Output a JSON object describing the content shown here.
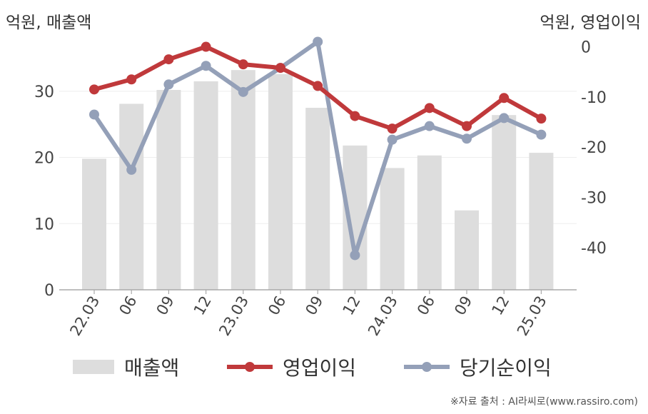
{
  "unit_left": "억원, 매출액",
  "unit_right": "억원, 영업이익",
  "footer": "※자료 출처 : AI라씨로(www.rassiro.com)",
  "chart_data": {
    "type": "bar+line",
    "categories": [
      "22.03",
      "06",
      "09",
      "12",
      "23.03",
      "06",
      "09",
      "12",
      "24.03",
      "06",
      "09",
      "12",
      "25.03"
    ],
    "series": [
      {
        "name": "매출액",
        "type": "bar",
        "axis": "left",
        "values": [
          19.8,
          28.1,
          30.2,
          31.5,
          33.2,
          32.6,
          27.5,
          21.8,
          18.4,
          20.3,
          12.0,
          26.4,
          20.7
        ]
      },
      {
        "name": "영업이익",
        "type": "line",
        "axis": "right",
        "values": [
          -8.5,
          -6.5,
          -2.5,
          0.0,
          -3.5,
          -4.2,
          -7.8,
          -13.8,
          -16.3,
          -12.2,
          -15.8,
          -10.2,
          -14.3
        ]
      },
      {
        "name": "당기순이익",
        "type": "line",
        "axis": "right",
        "values": [
          -13.5,
          -24.5,
          -7.5,
          -3.8,
          -9.0,
          -4.2,
          1.0,
          -41.5,
          -18.5,
          -15.8,
          -18.3,
          -14.2,
          -17.5
        ]
      }
    ],
    "y_left": {
      "min": 0,
      "max": 37.1,
      "ticks": [
        0,
        10,
        20,
        30
      ]
    },
    "y_right": {
      "min": -48.4,
      "max": 0.5,
      "ticks": [
        0,
        -10,
        -20,
        -30,
        -40
      ]
    },
    "grid": true,
    "legend_position": "bottom",
    "colors": {
      "bar": "#dddddd",
      "op": "#c0393b",
      "net": "#94a0b8",
      "axis": "#aaaaaa",
      "grid": "#eeeeee"
    }
  }
}
